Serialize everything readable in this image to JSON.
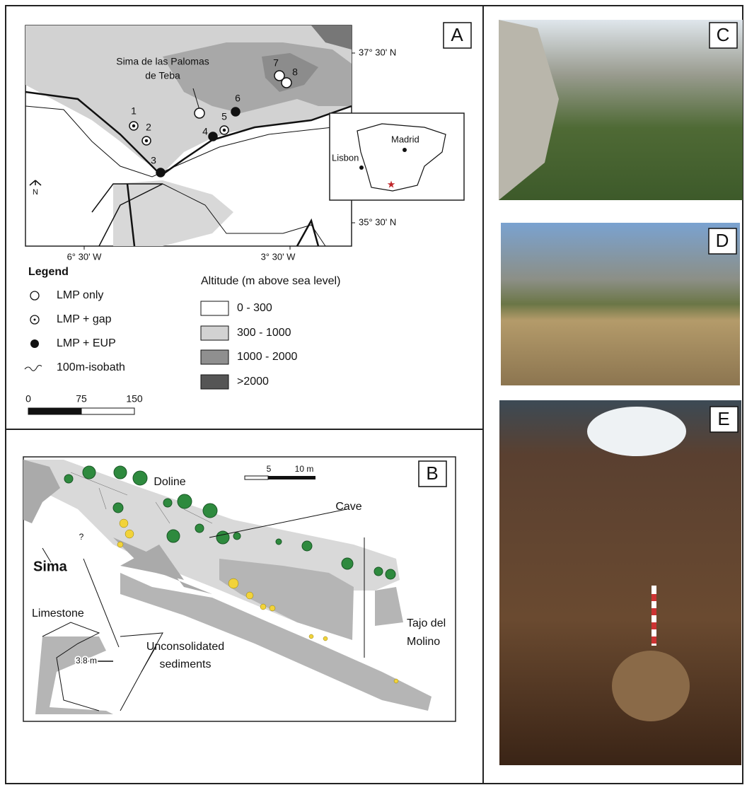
{
  "panel_a": {
    "label": "A",
    "site_name": [
      "Sima de las Palomas",
      "de Teba"
    ],
    "site_numbers": [
      "1",
      "2",
      "3",
      "4",
      "5",
      "6",
      "7",
      "8"
    ],
    "latitude_labels": [
      "37° 30' N",
      "35° 30' N"
    ],
    "longitude_labels": [
      "6° 30' W",
      "3° 30' W"
    ],
    "north": "N",
    "inset_cities": [
      "Madrid",
      "Lisbon"
    ],
    "legend": {
      "title": "Legend",
      "items": [
        "LMP only",
        "LMP + gap",
        "LMP + EUP",
        "100m-isobath"
      ]
    },
    "altitude": {
      "title": "Altitude (m above sea level)",
      "classes": [
        "0 - 300",
        "300 - 1000",
        "1000 - 2000",
        ">2000"
      ]
    },
    "scale_labels": [
      "0",
      "75",
      "150"
    ]
  },
  "panel_b": {
    "label": "B",
    "scale_labels": [
      "5",
      "10 m"
    ],
    "labels": {
      "doline": "Doline",
      "cave": "Cave",
      "unknown": "?",
      "sima": "Sima",
      "limestone": "Limestone",
      "width": "3.8 m",
      "sediments": [
        "Unconsolidated",
        "sediments"
      ],
      "tajo": [
        "Tajo del",
        "Molino"
      ]
    }
  },
  "panel_c": {
    "label": "C"
  },
  "panel_d": {
    "label": "D"
  },
  "panel_e": {
    "label": "E"
  }
}
